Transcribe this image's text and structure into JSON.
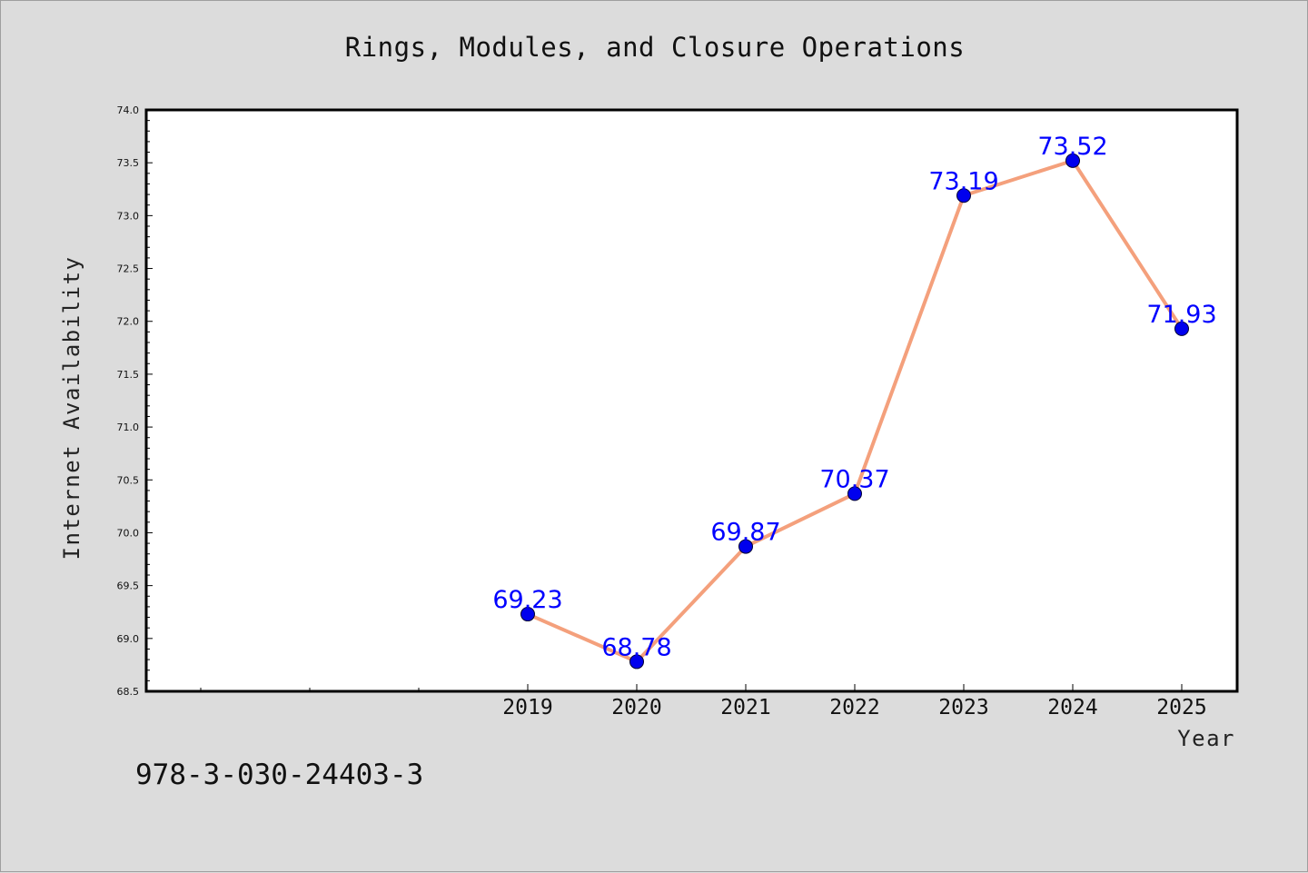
{
  "chart_data": {
    "type": "line",
    "title": "Rings, Modules, and Closure Operations",
    "xlabel": "Year",
    "ylabel": "Internet Availability",
    "categories": [
      "2019",
      "2020",
      "2021",
      "2022",
      "2023",
      "2024",
      "2025"
    ],
    "series": [
      {
        "values": [
          69.23,
          68.78,
          69.87,
          70.37,
          73.19,
          73.52,
          71.93
        ],
        "line_color": "#f4a07c",
        "marker_color": "#0000ee"
      }
    ],
    "data_labels": [
      "69.23",
      "68.78",
      "69.87",
      "70.37",
      "73.19",
      "73.52",
      "71.93"
    ],
    "ylim": [
      68.5,
      74.0
    ],
    "yticks": [
      "68.5",
      "69.0",
      "69.5",
      "70.0",
      "70.5",
      "71.0",
      "71.5",
      "72.0",
      "72.5",
      "73.0",
      "73.5",
      "74.0"
    ],
    "grid": false,
    "data_label_color": "#0000ff"
  },
  "annotation": {
    "code": "978-3-030-24403-3"
  },
  "colors": {
    "background": "#dcdcdc",
    "plot_area": "#ffffff",
    "line": "#f4a07c",
    "marker": "#0000ee",
    "data_label": "#0000ff"
  }
}
